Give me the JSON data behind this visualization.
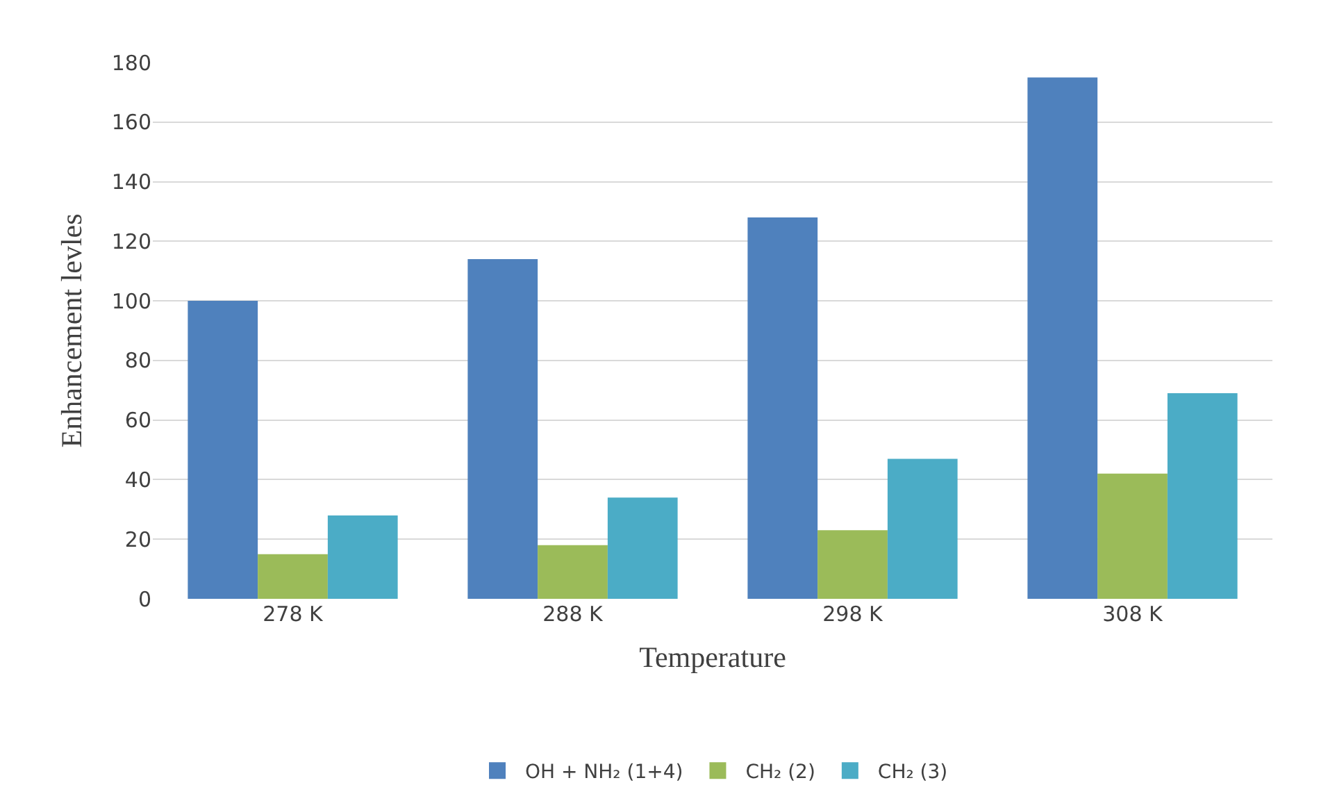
{
  "chart_data": {
    "type": "bar",
    "xlabel": "Temperature",
    "ylabel": "Enhancement levles",
    "categories": [
      "278 K",
      "288 K",
      "298 K",
      "308 K"
    ],
    "series": [
      {
        "name": "OH + NH₂ (1+4)",
        "color": "#4f81bd",
        "values": [
          100,
          114,
          128,
          175
        ]
      },
      {
        "name": "CH₂ (2)",
        "color": "#9bbb59",
        "values": [
          15,
          18,
          23,
          42
        ]
      },
      {
        "name": "CH₂ (3)",
        "color": "#4bacc6",
        "values": [
          28,
          34,
          47,
          69
        ]
      }
    ],
    "ylim": [
      0,
      180
    ],
    "yticks": [
      0,
      20,
      40,
      60,
      80,
      100,
      120,
      140,
      160,
      180
    ],
    "grid": "y",
    "legend": "bottom"
  }
}
